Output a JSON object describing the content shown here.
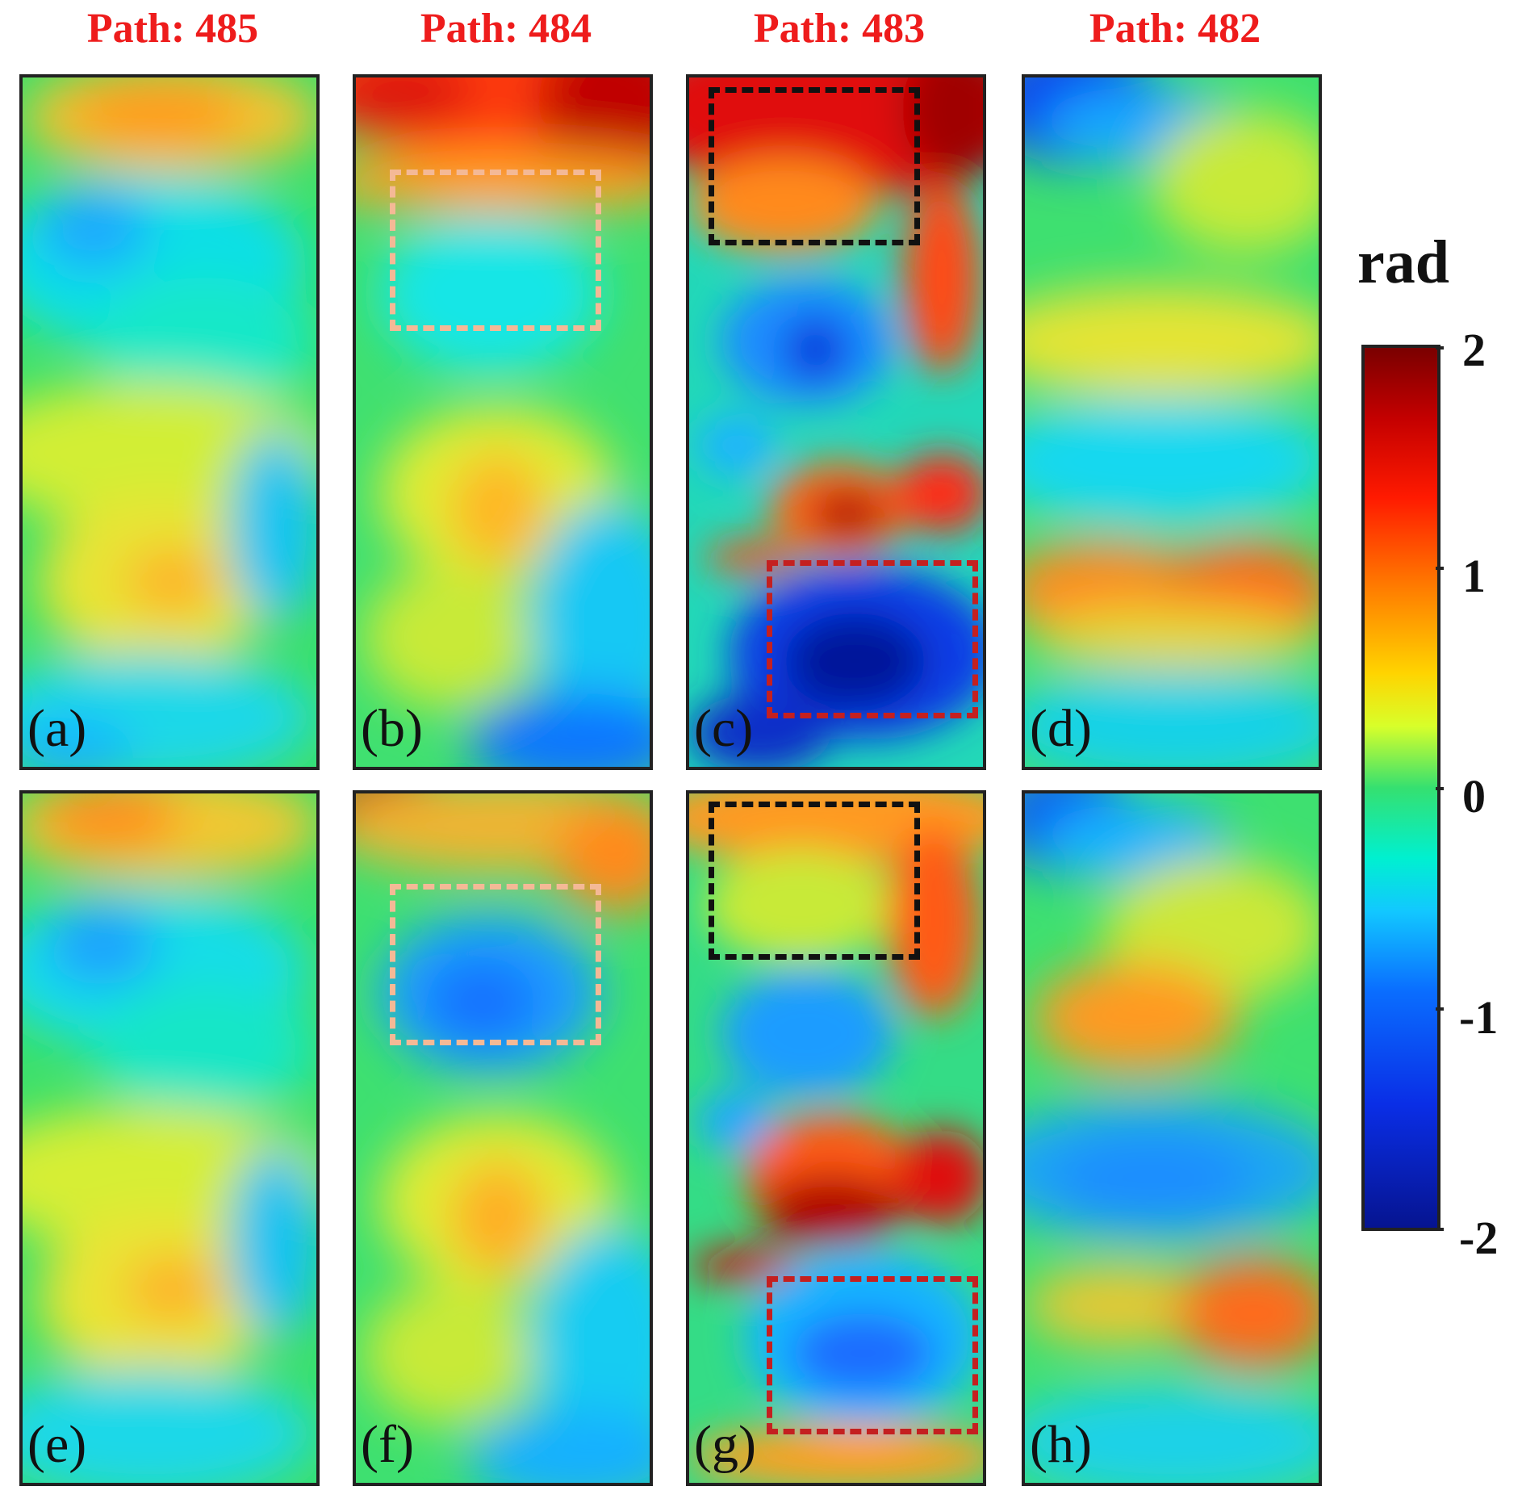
{
  "columns": [
    "Path: 485",
    "Path: 484",
    "Path: 483",
    "Path: 482"
  ],
  "panels": [
    {
      "label": "(a)",
      "path": "485",
      "row": "top"
    },
    {
      "label": "(b)",
      "path": "484",
      "row": "top"
    },
    {
      "label": "(c)",
      "path": "483",
      "row": "top"
    },
    {
      "label": "(d)",
      "path": "482",
      "row": "top"
    },
    {
      "label": "(e)",
      "path": "485",
      "row": "bottom"
    },
    {
      "label": "(f)",
      "path": "484",
      "row": "bottom"
    },
    {
      "label": "(g)",
      "path": "483",
      "row": "bottom"
    },
    {
      "label": "(h)",
      "path": "482",
      "row": "bottom"
    }
  ],
  "colorbar": {
    "unit": "rad",
    "ticks": [
      "2",
      "1",
      "0",
      "-1",
      "-2"
    ],
    "range": [
      -2,
      2
    ],
    "colormap": "jet"
  },
  "roi_colors": {
    "peach": "#f4b996",
    "black": "#111111",
    "red": "#c42020"
  }
}
